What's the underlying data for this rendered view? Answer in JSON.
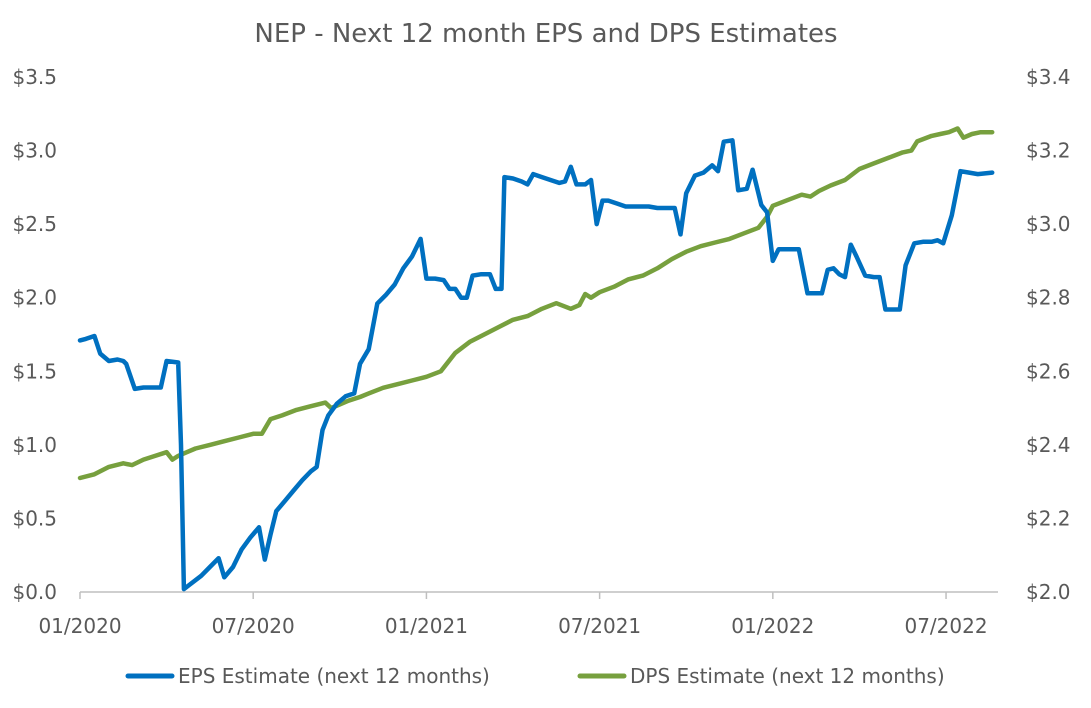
{
  "chart_data": {
    "type": "line",
    "title": "NEP - Next 12 month EPS and DPS Estimates",
    "x_tick_labels": [
      "01/2020",
      "07/2020",
      "01/2021",
      "07/2021",
      "01/2022",
      "07/2022"
    ],
    "x_range_months": [
      0,
      31.8
    ],
    "y_left": {
      "range": [
        0,
        3.5
      ],
      "ticks": [
        0,
        0.5,
        1.0,
        1.5,
        2.0,
        2.5,
        3.0,
        3.5
      ],
      "tick_labels": [
        "$0.0",
        "$0.5",
        "$1.0",
        "$1.5",
        "$2.0",
        "$2.5",
        "$3.0",
        "$3.5"
      ]
    },
    "y_right": {
      "range": [
        2.0,
        3.4
      ],
      "ticks": [
        2.0,
        2.2,
        2.4,
        2.6,
        2.8,
        3.0,
        3.2,
        3.4
      ],
      "tick_labels": [
        "$2.0",
        "$2.2",
        "$2.4",
        "$2.6",
        "$2.8",
        "$3.0",
        "$3.2",
        "$3.4"
      ]
    },
    "grid": false,
    "legend_position": "bottom",
    "series": [
      {
        "name": "EPS Estimate (next 12 months)",
        "axis": "left",
        "color": "#0070C0",
        "points": [
          [
            0,
            1.71
          ],
          [
            0.2,
            1.72
          ],
          [
            0.5,
            1.74
          ],
          [
            0.7,
            1.62
          ],
          [
            1.0,
            1.57
          ],
          [
            1.3,
            1.58
          ],
          [
            1.5,
            1.57
          ],
          [
            1.6,
            1.55
          ],
          [
            1.9,
            1.38
          ],
          [
            2.2,
            1.39
          ],
          [
            2.5,
            1.39
          ],
          [
            2.8,
            1.39
          ],
          [
            3.0,
            1.57
          ],
          [
            3.4,
            1.56
          ],
          [
            3.5,
            1.0
          ],
          [
            3.6,
            0.02
          ],
          [
            3.8,
            0.05
          ],
          [
            4.2,
            0.11
          ],
          [
            4.5,
            0.17
          ],
          [
            4.8,
            0.23
          ],
          [
            5.0,
            0.1
          ],
          [
            5.3,
            0.17
          ],
          [
            5.6,
            0.29
          ],
          [
            5.9,
            0.37
          ],
          [
            6.2,
            0.44
          ],
          [
            6.4,
            0.22
          ],
          [
            6.6,
            0.39
          ],
          [
            6.8,
            0.55
          ],
          [
            7.1,
            0.62
          ],
          [
            7.4,
            0.69
          ],
          [
            7.7,
            0.76
          ],
          [
            8.0,
            0.82
          ],
          [
            8.2,
            0.85
          ],
          [
            8.4,
            1.1
          ],
          [
            8.6,
            1.2
          ],
          [
            8.9,
            1.28
          ],
          [
            9.2,
            1.33
          ],
          [
            9.5,
            1.35
          ],
          [
            9.7,
            1.55
          ],
          [
            10.0,
            1.65
          ],
          [
            10.3,
            1.96
          ],
          [
            10.6,
            2.02
          ],
          [
            10.9,
            2.09
          ],
          [
            11.2,
            2.2
          ],
          [
            11.5,
            2.28
          ],
          [
            11.8,
            2.4
          ],
          [
            12.0,
            2.13
          ],
          [
            12.3,
            2.13
          ],
          [
            12.6,
            2.12
          ],
          [
            12.8,
            2.06
          ],
          [
            13.0,
            2.06
          ],
          [
            13.2,
            2.0
          ],
          [
            13.4,
            2.0
          ],
          [
            13.6,
            2.15
          ],
          [
            13.9,
            2.16
          ],
          [
            14.2,
            2.16
          ],
          [
            14.4,
            2.06
          ],
          [
            14.6,
            2.06
          ],
          [
            14.7,
            2.82
          ],
          [
            15.0,
            2.81
          ],
          [
            15.3,
            2.79
          ],
          [
            15.5,
            2.77
          ],
          [
            15.7,
            2.84
          ],
          [
            16.0,
            2.82
          ],
          [
            16.3,
            2.8
          ],
          [
            16.6,
            2.78
          ],
          [
            16.8,
            2.79
          ],
          [
            17.0,
            2.89
          ],
          [
            17.2,
            2.77
          ],
          [
            17.5,
            2.77
          ],
          [
            17.7,
            2.8
          ],
          [
            17.9,
            2.5
          ],
          [
            18.1,
            2.66
          ],
          [
            18.3,
            2.66
          ],
          [
            18.6,
            2.64
          ],
          [
            18.9,
            2.62
          ],
          [
            19.3,
            2.62
          ],
          [
            19.7,
            2.62
          ],
          [
            20.0,
            2.61
          ],
          [
            20.3,
            2.61
          ],
          [
            20.6,
            2.61
          ],
          [
            20.8,
            2.43
          ],
          [
            21.0,
            2.71
          ],
          [
            21.3,
            2.83
          ],
          [
            21.6,
            2.85
          ],
          [
            21.9,
            2.9
          ],
          [
            22.1,
            2.86
          ],
          [
            22.3,
            3.06
          ],
          [
            22.6,
            3.07
          ],
          [
            22.8,
            2.73
          ],
          [
            23.1,
            2.74
          ],
          [
            23.3,
            2.87
          ],
          [
            23.6,
            2.63
          ],
          [
            23.8,
            2.58
          ],
          [
            24.0,
            2.25
          ],
          [
            24.2,
            2.33
          ],
          [
            24.5,
            2.33
          ],
          [
            24.9,
            2.33
          ],
          [
            25.2,
            2.03
          ],
          [
            25.5,
            2.03
          ],
          [
            25.7,
            2.03
          ],
          [
            25.9,
            2.19
          ],
          [
            26.1,
            2.2
          ],
          [
            26.3,
            2.16
          ],
          [
            26.5,
            2.14
          ],
          [
            26.7,
            2.36
          ],
          [
            26.9,
            2.28
          ],
          [
            27.2,
            2.15
          ],
          [
            27.5,
            2.14
          ],
          [
            27.7,
            2.14
          ],
          [
            27.9,
            1.92
          ],
          [
            28.2,
            1.92
          ],
          [
            28.4,
            1.92
          ],
          [
            28.6,
            2.22
          ],
          [
            28.9,
            2.37
          ],
          [
            29.2,
            2.38
          ],
          [
            29.5,
            2.38
          ],
          [
            29.7,
            2.39
          ],
          [
            29.9,
            2.37
          ],
          [
            30.2,
            2.56
          ],
          [
            30.5,
            2.86
          ],
          [
            30.8,
            2.85
          ],
          [
            31.1,
            2.84
          ],
          [
            31.6,
            2.85
          ]
        ]
      },
      {
        "name": "DPS Estimate (next 12 months)",
        "axis": "right",
        "color": "#77A03E",
        "points": [
          [
            0,
            2.31
          ],
          [
            0.5,
            2.32
          ],
          [
            1.0,
            2.34
          ],
          [
            1.5,
            2.35
          ],
          [
            1.8,
            2.345
          ],
          [
            2.2,
            2.36
          ],
          [
            2.6,
            2.37
          ],
          [
            3.0,
            2.38
          ],
          [
            3.2,
            2.36
          ],
          [
            3.4,
            2.37
          ],
          [
            3.7,
            2.38
          ],
          [
            4.0,
            2.39
          ],
          [
            4.5,
            2.4
          ],
          [
            5.0,
            2.41
          ],
          [
            5.5,
            2.42
          ],
          [
            6.0,
            2.43
          ],
          [
            6.3,
            2.43
          ],
          [
            6.6,
            2.47
          ],
          [
            7.0,
            2.48
          ],
          [
            7.5,
            2.495
          ],
          [
            8.0,
            2.505
          ],
          [
            8.5,
            2.515
          ],
          [
            8.7,
            2.5
          ],
          [
            9.0,
            2.51
          ],
          [
            9.3,
            2.52
          ],
          [
            9.7,
            2.53
          ],
          [
            10.0,
            2.54
          ],
          [
            10.5,
            2.555
          ],
          [
            11.0,
            2.565
          ],
          [
            11.5,
            2.575
          ],
          [
            12.0,
            2.585
          ],
          [
            12.5,
            2.6
          ],
          [
            13.0,
            2.65
          ],
          [
            13.5,
            2.68
          ],
          [
            14.0,
            2.7
          ],
          [
            14.5,
            2.72
          ],
          [
            15.0,
            2.74
          ],
          [
            15.5,
            2.75
          ],
          [
            16.0,
            2.77
          ],
          [
            16.5,
            2.785
          ],
          [
            17.0,
            2.77
          ],
          [
            17.3,
            2.78
          ],
          [
            17.5,
            2.81
          ],
          [
            17.7,
            2.8
          ],
          [
            18.0,
            2.815
          ],
          [
            18.5,
            2.83
          ],
          [
            19.0,
            2.85
          ],
          [
            19.5,
            2.86
          ],
          [
            20.0,
            2.88
          ],
          [
            20.5,
            2.905
          ],
          [
            21.0,
            2.925
          ],
          [
            21.5,
            2.94
          ],
          [
            22.0,
            2.95
          ],
          [
            22.5,
            2.96
          ],
          [
            23.0,
            2.975
          ],
          [
            23.5,
            2.99
          ],
          [
            23.8,
            3.02
          ],
          [
            24.0,
            3.05
          ],
          [
            24.5,
            3.065
          ],
          [
            25.0,
            3.08
          ],
          [
            25.3,
            3.075
          ],
          [
            25.6,
            3.09
          ],
          [
            26.0,
            3.105
          ],
          [
            26.5,
            3.12
          ],
          [
            27.0,
            3.15
          ],
          [
            27.5,
            3.165
          ],
          [
            28.0,
            3.18
          ],
          [
            28.5,
            3.195
          ],
          [
            28.8,
            3.2
          ],
          [
            29.0,
            3.225
          ],
          [
            29.5,
            3.24
          ],
          [
            29.8,
            3.245
          ],
          [
            30.1,
            3.25
          ],
          [
            30.4,
            3.26
          ],
          [
            30.6,
            3.235
          ],
          [
            30.9,
            3.245
          ],
          [
            31.2,
            3.25
          ],
          [
            31.6,
            3.25
          ]
        ]
      }
    ]
  }
}
